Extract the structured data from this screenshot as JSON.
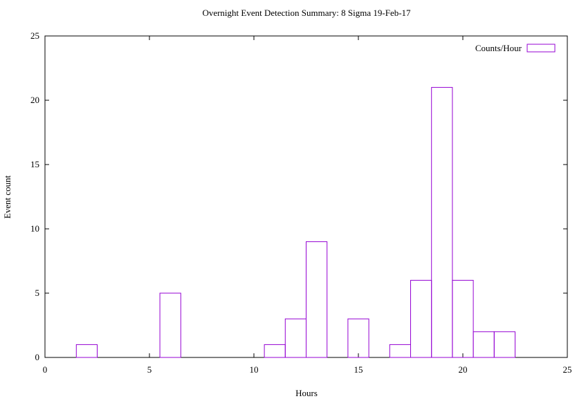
{
  "chart_data": {
    "type": "bar",
    "title": "Overnight Event Detection Summary: 8 Sigma 19-Feb-17",
    "xlabel": "Hours",
    "ylabel": "Event count",
    "xlim": [
      0,
      25
    ],
    "ylim": [
      0,
      25
    ],
    "x_ticks": [
      0,
      5,
      10,
      15,
      20,
      25
    ],
    "y_ticks": [
      0,
      5,
      10,
      15,
      20,
      25
    ],
    "bar_width": 1,
    "grid": false,
    "legend_position": "top-right",
    "series": [
      {
        "name": "Counts/Hour",
        "color": "#9400d3",
        "x": [
          2,
          6,
          11,
          12,
          13,
          15,
          17,
          18,
          19,
          20,
          21,
          22
        ],
        "values": [
          1,
          5,
          1,
          3,
          9,
          3,
          1,
          6,
          21,
          6,
          2,
          2
        ]
      }
    ]
  }
}
